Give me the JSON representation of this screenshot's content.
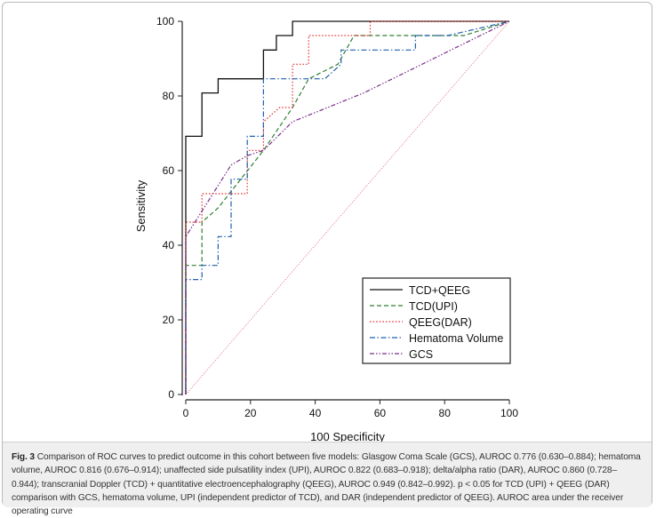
{
  "caption": {
    "label": "Fig. 3",
    "text": "Comparison of ROC curves to predict outcome in this cohort between five models: Glasgow Coma Scale (GCS), AUROC 0.776 (0.630–0.884); hematoma volume, AUROC 0.816 (0.676–0.914); unaffected side pulsatility index (UPI), AUROC 0.822 (0.683–0.918); delta/alpha ratio (DAR), AUROC 0.860 (0.728–0.944); transcranial Doppler (TCD) + quantitative electroencephalography (QEEG), AUROC 0.949 (0.842–0.992). p < 0.05 for TCD (UPI) + QEEG (DAR) comparison with GCS, hematoma volume, UPI (independent predictor of TCD), and DAR (independent predictor of QEEG). AUROC area under the receiver operating curve"
  },
  "chart_data": {
    "type": "line",
    "xlabel": "100 Specificity",
    "ylabel": "Sensitivity",
    "xlim": [
      0,
      100
    ],
    "ylim": [
      0,
      100
    ],
    "xticks": [
      "0",
      "20",
      "40",
      "60",
      "80",
      "100"
    ],
    "yticks": [
      "0",
      "20",
      "40",
      "60",
      "80",
      "100"
    ],
    "grid": false,
    "legend_position": "bottom-right",
    "series": [
      {
        "name": "TCD+QEEG",
        "color": "#111111",
        "dash": "solid",
        "x": [
          0,
          0,
          5,
          5,
          10,
          10,
          24,
          24,
          28,
          28,
          33,
          33,
          100
        ],
        "y": [
          0,
          69.2,
          69.2,
          80.8,
          80.8,
          84.6,
          84.6,
          92.3,
          92.3,
          96.2,
          96.2,
          100,
          100
        ]
      },
      {
        "name": "TCD(UPI)",
        "color": "#2e7d32",
        "dash": "dashed",
        "x": [
          0,
          0,
          5,
          5,
          10,
          24,
          33,
          38,
          47,
          52,
          86,
          100
        ],
        "y": [
          0,
          34.6,
          34.6,
          46.2,
          50,
          65.4,
          76.9,
          84.6,
          88.5,
          96.2,
          96.2,
          100
        ]
      },
      {
        "name": "QEEG(DAR)",
        "color": "#e53935",
        "dash": "dotted",
        "x": [
          0,
          0,
          5,
          5,
          19,
          19,
          24,
          24,
          29,
          33,
          33,
          38,
          38,
          57,
          57,
          100
        ],
        "y": [
          0,
          46.2,
          46.2,
          53.8,
          53.8,
          65.4,
          65.4,
          73.1,
          76.9,
          76.9,
          88.5,
          88.5,
          96.2,
          96.2,
          100,
          100
        ]
      },
      {
        "name": "Hematoma Volume",
        "color": "#1f5faa",
        "dash": "dashdot",
        "x": [
          0,
          0,
          5,
          5,
          10,
          10,
          14,
          14,
          19,
          19,
          24,
          24,
          43,
          48,
          48,
          71,
          71,
          81,
          100
        ],
        "y": [
          0,
          30.8,
          30.8,
          34.6,
          34.6,
          42.3,
          42.3,
          57.7,
          57.7,
          69.2,
          69.2,
          84.6,
          84.6,
          88.5,
          92.3,
          92.3,
          96.2,
          96.2,
          100
        ]
      },
      {
        "name": "GCS",
        "color": "#7a2e8a",
        "dash": "dashdotdot",
        "x": [
          0,
          0,
          14,
          19,
          24,
          33,
          55,
          100
        ],
        "y": [
          0,
          42.3,
          61.5,
          64,
          65.4,
          73.1,
          80.8,
          100
        ]
      }
    ],
    "reference_line": {
      "color": "#e07a8a",
      "x": [
        0,
        100
      ],
      "y": [
        0,
        100
      ]
    }
  }
}
